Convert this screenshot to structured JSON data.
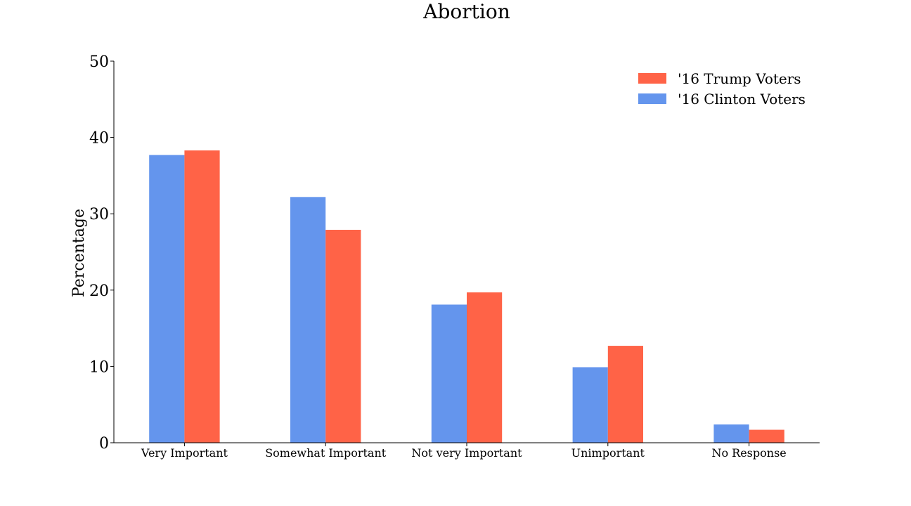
{
  "chart_data": {
    "type": "bar",
    "title": "Abortion",
    "xlabel": "",
    "ylabel": "Percentage",
    "categories": [
      "Very Important",
      "Somewhat Important",
      "Not very Important",
      "Unimportant",
      "No Response"
    ],
    "series": [
      {
        "name": "'16 Clinton Voters",
        "color": "#6495ED",
        "values": [
          37.7,
          32.2,
          18.1,
          9.9,
          2.4
        ]
      },
      {
        "name": "'16 Trump Voters",
        "color": "#FF6347",
        "values": [
          38.3,
          27.9,
          19.7,
          12.7,
          1.7
        ]
      }
    ],
    "ylim": [
      0,
      50
    ],
    "yticks": [
      "0",
      "10",
      "20",
      "30",
      "40",
      "50"
    ],
    "grid": false,
    "legend": {
      "position": "top-right",
      "entries": [
        "'16 Trump Voters",
        "'16 Clinton Voters"
      ]
    }
  }
}
